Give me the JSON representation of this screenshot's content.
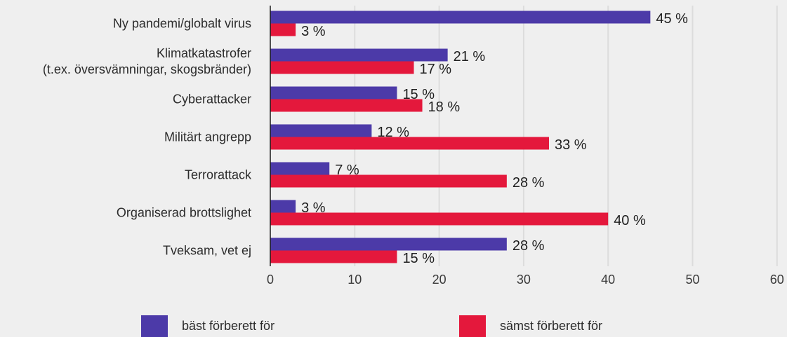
{
  "chart_data": {
    "type": "bar",
    "orientation": "horizontal",
    "categories": [
      [
        "Ny pandemi/globalt virus"
      ],
      [
        "Klimatkatastrofer",
        "(t.ex. översvämningar, skogsbränder)"
      ],
      [
        "Cyberattacker"
      ],
      [
        "Militärt angrepp"
      ],
      [
        "Terrorattack"
      ],
      [
        "Organiserad brottslighet"
      ],
      [
        "Tveksam, vet ej"
      ]
    ],
    "series": [
      {
        "name": "bäst förberett för",
        "color": "#4c3aa8",
        "values": [
          45,
          21,
          15,
          12,
          7,
          3,
          28
        ],
        "labels": [
          "45 %",
          "21 %",
          "15 %",
          "12 %",
          "7 %",
          "3 %",
          "28 %"
        ]
      },
      {
        "name": "sämst förberett för",
        "color": "#e4183c",
        "values": [
          3,
          17,
          18,
          33,
          28,
          40,
          15
        ],
        "labels": [
          "3 %",
          "17 %",
          "18 %",
          "33 %",
          "28 %",
          "40 %",
          "15 %"
        ]
      }
    ],
    "xlim": [
      0,
      60
    ],
    "xticks": [
      "0",
      "10",
      "20",
      "30",
      "40",
      "50",
      "60"
    ],
    "grid": true,
    "legend_position": "bottom"
  },
  "legend": {
    "best_label": "bäst förberett för",
    "best_color": "#4c3aa8",
    "worst_label": "sämst förberett för",
    "worst_color": "#e4183c"
  },
  "style": {
    "background": "#efefef",
    "gridline_color": "#dcdcdc",
    "axis_color": "#1a1a1a"
  }
}
